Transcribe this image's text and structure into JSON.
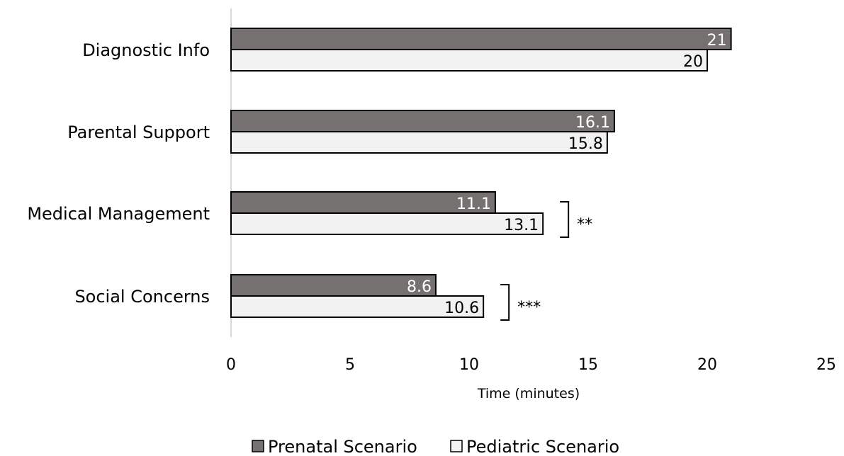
{
  "chart_data": {
    "type": "bar",
    "orientation": "horizontal",
    "title": "",
    "xlabel": "Time (minutes)",
    "ylabel": "",
    "xlim": [
      0,
      25
    ],
    "xticks": [
      "0",
      "5",
      "10",
      "15",
      "20",
      "25"
    ],
    "grid": false,
    "legend_position": "bottom",
    "categories": [
      "Diagnostic Info",
      "Parental Support",
      "Medical Management",
      "Social Concerns"
    ],
    "series": [
      {
        "name": "Prenatal Scenario",
        "color": "#767171",
        "label_color": "#ffffff",
        "values": [
          21,
          16.1,
          11.1,
          8.6
        ],
        "labels": [
          "21",
          "16.1",
          "11.1",
          "8.6"
        ]
      },
      {
        "name": "Pediatric Scenario",
        "color": "#f2f2f2",
        "label_color": "#000000",
        "values": [
          20,
          15.8,
          13.1,
          10.6
        ],
        "labels": [
          "20",
          "15.8",
          "13.1",
          "10.6"
        ]
      }
    ],
    "significance": [
      {
        "category": "Medical Management",
        "label": "**"
      },
      {
        "category": "Social Concerns",
        "label": "***"
      }
    ]
  }
}
